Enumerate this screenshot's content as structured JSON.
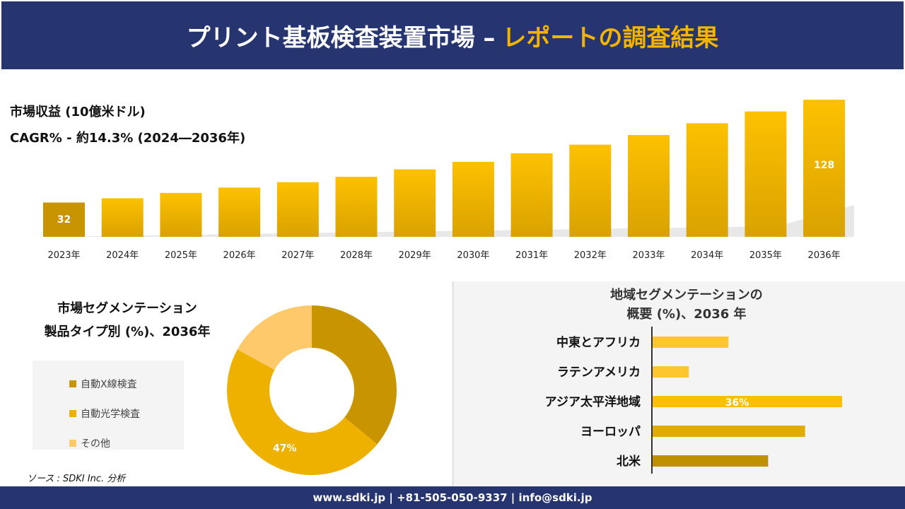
{
  "header": {
    "title_main": "プリント基板検査装置市場 –",
    "title_accent": "レポートの調査結果"
  },
  "top_info": {
    "line1": "市場収益 (10億米ドル)",
    "line2": "CAGR% - 約14.3% (2024―2036年)"
  },
  "colors": {
    "navy": "#263570",
    "accent": "#f5b400",
    "bar": "#e6ac00"
  },
  "chart_data": [
    {
      "type": "bar",
      "categories": [
        "2023年",
        "2024年",
        "2025年",
        "2026年",
        "2027年",
        "2028年",
        "2029年",
        "2030年",
        "2031年",
        "2032年",
        "2033年",
        "2034年",
        "2035年",
        "2036年"
      ],
      "values": [
        32,
        36,
        41,
        46,
        51,
        56,
        63,
        70,
        78,
        86,
        95,
        106,
        117,
        128
      ],
      "data_labels": {
        "0": "32",
        "13": "128"
      },
      "ylabel": "市場収益 (10億米ドル)",
      "grid": false
    },
    {
      "type": "pie",
      "title": "市場セグメンテーション 製品タイプ別 (%)、2036年",
      "title_lines": [
        "市場セグメンテーション",
        "製品タイプ別 (%)、2036年"
      ],
      "labels": [
        "自動X線検査",
        "自動光学検査",
        "その他"
      ],
      "values": [
        36,
        47,
        17
      ],
      "colors": [
        "#c89500",
        "#eeb100",
        "#fec96a"
      ],
      "data_labels": {
        "1": "47%"
      },
      "legend": "left"
    },
    {
      "type": "bar",
      "orientation": "horizontal",
      "title_lines": [
        "地域セグメンテーションの",
        "概要 (%)、2036 年"
      ],
      "categories": [
        "中東とアフリカ",
        "ラテンアメリカ",
        "アジア太平洋地域",
        "ヨーロッパ",
        "北米"
      ],
      "values": [
        14.5,
        7,
        36,
        29,
        22
      ],
      "colors": [
        "#fec62e",
        "#fec62e",
        "#fdbf00",
        "#e2ab00",
        "#bf9000"
      ],
      "data_labels": {
        "2": "36%"
      }
    }
  ],
  "source": "ソース : SDKI Inc. 分析",
  "footer": "www.sdki.jp | +81-505-050-9337 | info@sdki.jp"
}
